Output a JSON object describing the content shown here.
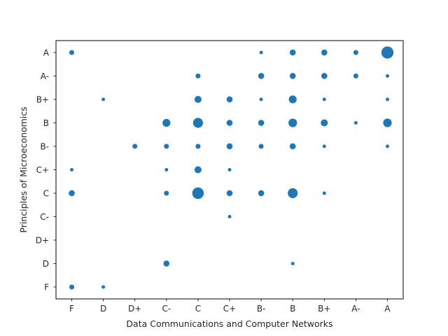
{
  "chart_data": {
    "type": "scatter",
    "title": "",
    "xlabel": "Data Communications and Computer Networks",
    "ylabel": "Principles of Microeconomics",
    "x_categories": [
      "F",
      "D",
      "D+",
      "C-",
      "C",
      "C+",
      "B-",
      "B",
      "B+",
      "A-",
      "A"
    ],
    "y_categories": [
      "F",
      "D",
      "D+",
      "C-",
      "C",
      "C+",
      "B-",
      "B",
      "B+",
      "A-",
      "A"
    ],
    "marker_color": "#1f77b4",
    "grid": false,
    "legend": "none",
    "size_encoding": "count",
    "points": [
      {
        "x": "F",
        "y": "A",
        "count": 2
      },
      {
        "x": "F",
        "y": "C+",
        "count": 1
      },
      {
        "x": "F",
        "y": "C",
        "count": 3
      },
      {
        "x": "F",
        "y": "F",
        "count": 2
      },
      {
        "x": "D",
        "y": "B+",
        "count": 1
      },
      {
        "x": "D",
        "y": "F",
        "count": 1
      },
      {
        "x": "D+",
        "y": "B-",
        "count": 2
      },
      {
        "x": "C-",
        "y": "B",
        "count": 5
      },
      {
        "x": "C-",
        "y": "B-",
        "count": 2
      },
      {
        "x": "C-",
        "y": "C+",
        "count": 1
      },
      {
        "x": "C-",
        "y": "C",
        "count": 2
      },
      {
        "x": "C-",
        "y": "D",
        "count": 3
      },
      {
        "x": "C",
        "y": "A-",
        "count": 2
      },
      {
        "x": "C",
        "y": "B+",
        "count": 4
      },
      {
        "x": "C",
        "y": "B",
        "count": 8
      },
      {
        "x": "C",
        "y": "B-",
        "count": 2
      },
      {
        "x": "C",
        "y": "C+",
        "count": 4
      },
      {
        "x": "C",
        "y": "C",
        "count": 11
      },
      {
        "x": "C+",
        "y": "B+",
        "count": 3
      },
      {
        "x": "C+",
        "y": "B",
        "count": 3
      },
      {
        "x": "C+",
        "y": "B-",
        "count": 3
      },
      {
        "x": "C+",
        "y": "C+",
        "count": 1
      },
      {
        "x": "C+",
        "y": "C",
        "count": 3
      },
      {
        "x": "C+",
        "y": "C-",
        "count": 1
      },
      {
        "x": "B-",
        "y": "A",
        "count": 1
      },
      {
        "x": "B-",
        "y": "A-",
        "count": 3
      },
      {
        "x": "B-",
        "y": "B+",
        "count": 1
      },
      {
        "x": "B-",
        "y": "B",
        "count": 3
      },
      {
        "x": "B-",
        "y": "B-",
        "count": 2
      },
      {
        "x": "B-",
        "y": "C",
        "count": 3
      },
      {
        "x": "B",
        "y": "A",
        "count": 3
      },
      {
        "x": "B",
        "y": "A-",
        "count": 3
      },
      {
        "x": "B",
        "y": "B+",
        "count": 5
      },
      {
        "x": "B",
        "y": "B",
        "count": 6
      },
      {
        "x": "B",
        "y": "B-",
        "count": 3
      },
      {
        "x": "B",
        "y": "C",
        "count": 8
      },
      {
        "x": "B",
        "y": "D",
        "count": 1
      },
      {
        "x": "B+",
        "y": "A",
        "count": 3
      },
      {
        "x": "B+",
        "y": "A-",
        "count": 3
      },
      {
        "x": "B+",
        "y": "B+",
        "count": 1
      },
      {
        "x": "B+",
        "y": "B",
        "count": 4
      },
      {
        "x": "B+",
        "y": "B-",
        "count": 1
      },
      {
        "x": "B+",
        "y": "C",
        "count": 1
      },
      {
        "x": "A-",
        "y": "A",
        "count": 2
      },
      {
        "x": "A-",
        "y": "A-",
        "count": 2
      },
      {
        "x": "A-",
        "y": "B",
        "count": 1
      },
      {
        "x": "A",
        "y": "A",
        "count": 12
      },
      {
        "x": "A",
        "y": "A-",
        "count": 1
      },
      {
        "x": "A",
        "y": "B+",
        "count": 1
      },
      {
        "x": "A",
        "y": "B",
        "count": 6
      },
      {
        "x": "A",
        "y": "B-",
        "count": 1
      }
    ]
  }
}
